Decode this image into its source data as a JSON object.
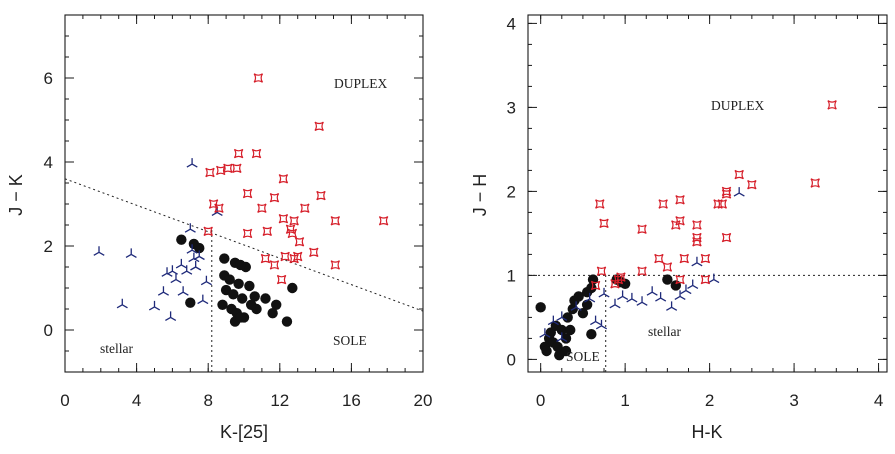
{
  "chart_data": [
    {
      "type": "scatter",
      "xlabel": "K-[25]",
      "ylabel": "J − K",
      "xlim": [
        0,
        20
      ],
      "ylim": [
        -1,
        7.5
      ],
      "xticks": [
        "0",
        "4",
        "8",
        "12",
        "16",
        "20"
      ],
      "yticks": [
        "0",
        "2",
        "4",
        "6"
      ],
      "annotations": {
        "duplex": "DUPLEX",
        "sole": "SOLE",
        "stellar": "stellar"
      },
      "series": [
        {
          "marker": "circle-filled",
          "color": "#111111",
          "points": [
            [
              6.5,
              2.15
            ],
            [
              7.2,
              2.05
            ],
            [
              7.5,
              1.95
            ],
            [
              8.9,
              1.7
            ],
            [
              9.5,
              1.6
            ],
            [
              10.1,
              1.5
            ],
            [
              9.8,
              1.55
            ],
            [
              8.9,
              1.3
            ],
            [
              9.2,
              1.2
            ],
            [
              9.7,
              1.1
            ],
            [
              10.3,
              1.05
            ],
            [
              9.0,
              0.95
            ],
            [
              9.4,
              0.85
            ],
            [
              9.9,
              0.75
            ],
            [
              10.6,
              0.8
            ],
            [
              11.2,
              0.75
            ],
            [
              11.8,
              0.6
            ],
            [
              12.7,
              1.0
            ],
            [
              8.8,
              0.6
            ],
            [
              9.3,
              0.5
            ],
            [
              9.6,
              0.4
            ],
            [
              10.0,
              0.3
            ],
            [
              10.7,
              0.5
            ],
            [
              11.6,
              0.4
            ],
            [
              12.4,
              0.2
            ],
            [
              9.5,
              0.2
            ],
            [
              7.0,
              0.65
            ],
            [
              9.8,
              0.3
            ],
            [
              10.4,
              0.6
            ]
          ]
        },
        {
          "marker": "tri-branch",
          "color": "#1f2a7a",
          "points": [
            [
              1.9,
              1.85
            ],
            [
              3.7,
              1.8
            ],
            [
              3.2,
              0.6
            ],
            [
              5.0,
              0.55
            ],
            [
              5.7,
              1.35
            ],
            [
              6.2,
              1.2
            ],
            [
              6.0,
              1.4
            ],
            [
              6.5,
              1.55
            ],
            [
              6.8,
              1.4
            ],
            [
              7.1,
              1.9
            ],
            [
              7.2,
              1.7
            ],
            [
              7.3,
              1.5
            ],
            [
              7.0,
              2.4
            ],
            [
              7.5,
              1.75
            ],
            [
              5.9,
              0.3
            ],
            [
              5.5,
              0.9
            ],
            [
              6.6,
              0.9
            ],
            [
              7.7,
              0.7
            ],
            [
              7.9,
              1.15
            ],
            [
              7.1,
              3.95
            ],
            [
              8.5,
              2.8
            ]
          ]
        },
        {
          "marker": "star4",
          "color": "#d61f2a",
          "points": [
            [
              10.8,
              6.0
            ],
            [
              14.2,
              4.85
            ],
            [
              9.7,
              4.2
            ],
            [
              10.7,
              4.2
            ],
            [
              8.7,
              3.8
            ],
            [
              9.1,
              3.85
            ],
            [
              9.6,
              3.85
            ],
            [
              8.1,
              3.75
            ],
            [
              12.2,
              3.6
            ],
            [
              10.2,
              3.25
            ],
            [
              11.7,
              3.15
            ],
            [
              14.3,
              3.2
            ],
            [
              8.3,
              3.0
            ],
            [
              8.6,
              2.9
            ],
            [
              11.0,
              2.9
            ],
            [
              13.4,
              2.9
            ],
            [
              15.1,
              2.6
            ],
            [
              17.8,
              2.6
            ],
            [
              12.2,
              2.65
            ],
            [
              12.8,
              2.6
            ],
            [
              12.6,
              2.4
            ],
            [
              12.7,
              2.3
            ],
            [
              13.1,
              2.1
            ],
            [
              11.3,
              2.35
            ],
            [
              10.2,
              2.3
            ],
            [
              8.0,
              2.35
            ],
            [
              12.3,
              1.75
            ],
            [
              12.8,
              1.7
            ],
            [
              13.0,
              1.75
            ],
            [
              11.2,
              1.7
            ],
            [
              13.9,
              1.85
            ],
            [
              11.7,
              1.55
            ],
            [
              15.1,
              1.55
            ],
            [
              12.1,
              1.2
            ]
          ]
        }
      ],
      "lines": [
        {
          "kind": "dotted",
          "points": [
            [
              0,
              3.6
            ],
            [
              20,
              0.45
            ]
          ]
        },
        {
          "kind": "dotted",
          "points": [
            [
              8.2,
              -1
            ],
            [
              8.2,
              2.45
            ]
          ]
        }
      ]
    },
    {
      "type": "scatter",
      "xlabel": "H-K",
      "ylabel": "J − H",
      "xlim": [
        -0.15,
        4.1
      ],
      "ylim": [
        -0.15,
        4.1
      ],
      "xticks": [
        "0",
        "1",
        "2",
        "3",
        "4"
      ],
      "yticks": [
        "0",
        "1",
        "2",
        "3",
        "4"
      ],
      "annotations": {
        "duplex": "DUPLEX",
        "sole": "SOLE",
        "stellar": "stellar"
      },
      "series": [
        {
          "marker": "circle-filled",
          "color": "#111111",
          "points": [
            [
              0.0,
              0.62
            ],
            [
              0.05,
              0.15
            ],
            [
              0.07,
              0.1
            ],
            [
              0.1,
              0.25
            ],
            [
              0.12,
              0.32
            ],
            [
              0.15,
              0.2
            ],
            [
              0.18,
              0.4
            ],
            [
              0.2,
              0.15
            ],
            [
              0.25,
              0.35
            ],
            [
              0.3,
              0.25
            ],
            [
              0.32,
              0.5
            ],
            [
              0.35,
              0.35
            ],
            [
              0.38,
              0.6
            ],
            [
              0.4,
              0.7
            ],
            [
              0.45,
              0.75
            ],
            [
              0.5,
              0.55
            ],
            [
              0.55,
              0.65
            ],
            [
              0.6,
              0.85
            ],
            [
              0.62,
              0.95
            ],
            [
              0.3,
              0.1
            ],
            [
              0.9,
              0.95
            ],
            [
              0.95,
              0.92
            ],
            [
              1.0,
              0.9
            ],
            [
              1.5,
              0.95
            ],
            [
              1.6,
              0.88
            ],
            [
              0.6,
              0.3
            ],
            [
              0.22,
              0.05
            ],
            [
              0.55,
              0.8
            ]
          ]
        },
        {
          "marker": "tri-branch",
          "color": "#1f2a7a",
          "points": [
            [
              0.15,
              0.45
            ],
            [
              0.05,
              0.3
            ],
            [
              0.25,
              0.5
            ],
            [
              0.42,
              0.62
            ],
            [
              0.58,
              0.72
            ],
            [
              0.75,
              0.78
            ],
            [
              0.88,
              0.65
            ],
            [
              0.97,
              0.75
            ],
            [
              1.08,
              0.72
            ],
            [
              1.2,
              0.68
            ],
            [
              1.32,
              0.8
            ],
            [
              1.42,
              0.73
            ],
            [
              1.55,
              0.62
            ],
            [
              1.65,
              0.75
            ],
            [
              1.72,
              0.82
            ],
            [
              1.8,
              0.88
            ],
            [
              1.85,
              1.15
            ],
            [
              2.05,
              0.95
            ],
            [
              2.35,
              1.98
            ],
            [
              0.65,
              0.45
            ],
            [
              0.72,
              0.4
            ],
            [
              0.25,
              0.25
            ]
          ]
        },
        {
          "marker": "star4",
          "color": "#d61f2a",
          "points": [
            [
              3.45,
              3.03
            ],
            [
              3.25,
              2.1
            ],
            [
              2.5,
              2.08
            ],
            [
              2.35,
              2.2
            ],
            [
              2.2,
              1.97
            ],
            [
              2.2,
              2.0
            ],
            [
              2.15,
              1.85
            ],
            [
              2.1,
              1.85
            ],
            [
              2.2,
              1.45
            ],
            [
              1.65,
              1.9
            ],
            [
              1.45,
              1.85
            ],
            [
              1.65,
              1.65
            ],
            [
              1.6,
              1.6
            ],
            [
              1.85,
              1.6
            ],
            [
              1.85,
              1.45
            ],
            [
              1.85,
              1.4
            ],
            [
              0.7,
              1.85
            ],
            [
              0.75,
              1.62
            ],
            [
              1.2,
              1.55
            ],
            [
              1.4,
              1.2
            ],
            [
              1.5,
              1.1
            ],
            [
              1.7,
              1.2
            ],
            [
              1.95,
              1.2
            ],
            [
              1.65,
              0.95
            ],
            [
              1.95,
              0.95
            ],
            [
              1.2,
              1.05
            ],
            [
              0.92,
              0.95
            ],
            [
              0.95,
              0.98
            ],
            [
              0.88,
              0.9
            ],
            [
              0.72,
              1.05
            ],
            [
              0.65,
              0.88
            ]
          ]
        }
      ],
      "lines": [
        {
          "kind": "dotted",
          "points": [
            [
              -0.15,
              1.0
            ],
            [
              4.1,
              1.0
            ]
          ]
        },
        {
          "kind": "dotted",
          "points": [
            [
              0.77,
              -0.15
            ],
            [
              0.77,
              1.0
            ]
          ]
        }
      ]
    }
  ]
}
